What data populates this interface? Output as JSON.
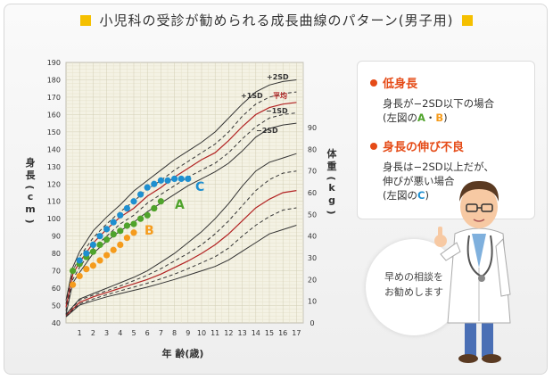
{
  "header": {
    "title": "小児科の受診が勧められる成長曲線のパターン(男子用)"
  },
  "colors": {
    "accent": "#f5c000",
    "alert": "#e54b17",
    "group_a": "#4fa32b",
    "group_b": "#f59b1c",
    "group_c": "#1e8fd0",
    "mean_line": "#b22222"
  },
  "callout": {
    "short_title": "低身長",
    "short_line1": "身長が−2SD以下の場合",
    "short_line2_pre": "(左図の",
    "short_a": "A",
    "short_sep": "・",
    "short_b": "B",
    "short_line2_post": ")",
    "slow_title": "身長の伸び不良",
    "slow_line1": "身長は−2SD以上だが、",
    "slow_line2": "伸びが悪い場合",
    "slow_line3_pre": "(左図の",
    "slow_c": "C",
    "slow_line3_post": ")"
  },
  "bubble": {
    "line1": "早めの相談を",
    "line2": "お勧めします"
  },
  "doctor": {
    "icon": "doctor-illustration-icon"
  },
  "chart_data": {
    "type": "line",
    "xlabel": "年 齢(歳)",
    "ylabel_left": "身長(cm)",
    "ylabel_right": "体重(kg)",
    "x_ticks": [
      1,
      2,
      3,
      4,
      5,
      6,
      7,
      8,
      9,
      10,
      11,
      12,
      13,
      14,
      15,
      16,
      17
    ],
    "xlim": [
      0,
      17.5
    ],
    "ylim_left": [
      40,
      190
    ],
    "y_ticks_left": [
      40,
      50,
      60,
      70,
      80,
      90,
      100,
      110,
      120,
      130,
      140,
      150,
      160,
      170,
      180,
      190
    ],
    "ylim_right": [
      0,
      120
    ],
    "y_ticks_right": [
      0,
      10,
      20,
      30,
      40,
      50,
      60,
      70,
      80,
      90
    ],
    "height_curves": [
      {
        "name": "+2SD",
        "style": "solid",
        "x": [
          0,
          0.5,
          1,
          2,
          3,
          4,
          5,
          6,
          7,
          8,
          9,
          10,
          11,
          12,
          13,
          14,
          15,
          16,
          17
        ],
        "y": [
          53,
          72,
          81,
          93,
          101,
          108,
          116,
          122,
          128,
          134,
          139,
          144,
          150,
          158,
          166,
          173,
          177,
          179,
          180
        ]
      },
      {
        "name": "+1SD",
        "style": "dashed",
        "x": [
          0,
          0.5,
          1,
          2,
          3,
          4,
          5,
          6,
          7,
          8,
          9,
          10,
          11,
          12,
          13,
          14,
          15,
          16,
          17
        ],
        "y": [
          51,
          70,
          78,
          89,
          97,
          104,
          110,
          117,
          122,
          128,
          133,
          138,
          143,
          150,
          159,
          166,
          170,
          172,
          173
        ]
      },
      {
        "name": "平均",
        "style": "solid",
        "x": [
          0,
          0.5,
          1,
          2,
          3,
          4,
          5,
          6,
          7,
          8,
          9,
          10,
          11,
          12,
          13,
          14,
          15,
          16,
          17
        ],
        "y": [
          49,
          68,
          75,
          86,
          94,
          101,
          106,
          113,
          118,
          124,
          129,
          134,
          138,
          145,
          153,
          160,
          164,
          166,
          167
        ]
      },
      {
        "name": "−1SD",
        "style": "dashed",
        "x": [
          0,
          0.5,
          1,
          2,
          3,
          4,
          5,
          6,
          7,
          8,
          9,
          10,
          11,
          12,
          13,
          14,
          15,
          16,
          17
        ],
        "y": [
          47,
          65,
          72,
          83,
          90,
          97,
          102,
          109,
          114,
          119,
          124,
          128,
          132,
          138,
          146,
          153,
          158,
          160,
          161
        ]
      },
      {
        "name": "−2SD",
        "style": "solid",
        "x": [
          0,
          0.5,
          1,
          2,
          3,
          4,
          5,
          6,
          7,
          8,
          9,
          10,
          11,
          12,
          13,
          14,
          15,
          16,
          17
        ],
        "y": [
          45,
          63,
          69,
          80,
          87,
          93,
          98,
          104,
          109,
          114,
          119,
          123,
          127,
          132,
          139,
          147,
          152,
          154,
          155
        ]
      }
    ],
    "weight_curves": [
      {
        "style": "solid",
        "x": [
          0,
          1,
          2,
          3,
          4,
          5,
          6,
          7,
          8,
          9,
          10,
          11,
          12,
          13,
          14,
          15,
          16,
          17
        ],
        "y": [
          4,
          11,
          13.5,
          16,
          18.5,
          21,
          24,
          28,
          32,
          37,
          42,
          48,
          55,
          63,
          70,
          74,
          76,
          78
        ]
      },
      {
        "style": "dashed",
        "x": [
          0,
          1,
          2,
          3,
          4,
          5,
          6,
          7,
          8,
          9,
          10,
          11,
          12,
          13,
          14,
          15,
          16,
          17
        ],
        "y": [
          3.7,
          10.5,
          12.8,
          14.8,
          17,
          19.5,
          22,
          25,
          28.5,
          32,
          36,
          41,
          47,
          54,
          61,
          66,
          69,
          70
        ]
      },
      {
        "style": "solid-red",
        "x": [
          0,
          1,
          2,
          3,
          4,
          5,
          6,
          7,
          8,
          9,
          10,
          11,
          12,
          13,
          14,
          15,
          16,
          17
        ],
        "y": [
          3.3,
          9.5,
          12,
          14,
          16,
          18,
          20,
          22.5,
          25.5,
          28.5,
          32,
          36,
          41,
          47,
          53,
          57,
          60,
          61
        ]
      },
      {
        "style": "dashed",
        "x": [
          0,
          1,
          2,
          3,
          4,
          5,
          6,
          7,
          8,
          9,
          10,
          11,
          12,
          13,
          14,
          15,
          16,
          17
        ],
        "y": [
          3,
          8.8,
          11,
          13,
          14.8,
          16.5,
          18.3,
          20.3,
          22.5,
          25,
          27.7,
          30.5,
          34.5,
          40,
          45,
          49,
          52,
          53
        ]
      },
      {
        "style": "solid",
        "x": [
          0,
          1,
          2,
          3,
          4,
          5,
          6,
          7,
          8,
          9,
          10,
          11,
          12,
          13,
          14,
          15,
          16,
          17
        ],
        "y": [
          2.8,
          8.2,
          10.2,
          12,
          13.5,
          15,
          16.5,
          18.2,
          20,
          22,
          24,
          26,
          29,
          33,
          37,
          41,
          43,
          45
        ]
      }
    ],
    "series": [
      {
        "name": "A",
        "color": "#4fa32b",
        "x": [
          0.5,
          1,
          1.5,
          2,
          2.5,
          3,
          3.5,
          4,
          4.5,
          5,
          5.5,
          6,
          6.5,
          7
        ],
        "y": [
          70,
          74,
          78,
          81,
          85,
          88,
          91,
          93,
          96,
          97,
          100,
          102,
          106,
          110
        ]
      },
      {
        "name": "B",
        "color": "#f59b1c",
        "x": [
          0.5,
          1,
          1.5,
          2,
          2.5,
          3,
          3.5,
          4,
          4.5,
          5
        ],
        "y": [
          62,
          67,
          71,
          73,
          76,
          79,
          82,
          85,
          89,
          92
        ]
      },
      {
        "name": "C",
        "color": "#1e8fd0",
        "x": [
          1,
          1.5,
          2,
          2.5,
          3,
          3.5,
          4,
          4.5,
          5,
          5.5,
          6,
          6.5,
          7,
          7.5,
          8,
          8.5,
          9
        ],
        "y": [
          76,
          80,
          85,
          90,
          94,
          98,
          102,
          106,
          110,
          114,
          118,
          120,
          122,
          122,
          123,
          123,
          123
        ]
      }
    ]
  }
}
